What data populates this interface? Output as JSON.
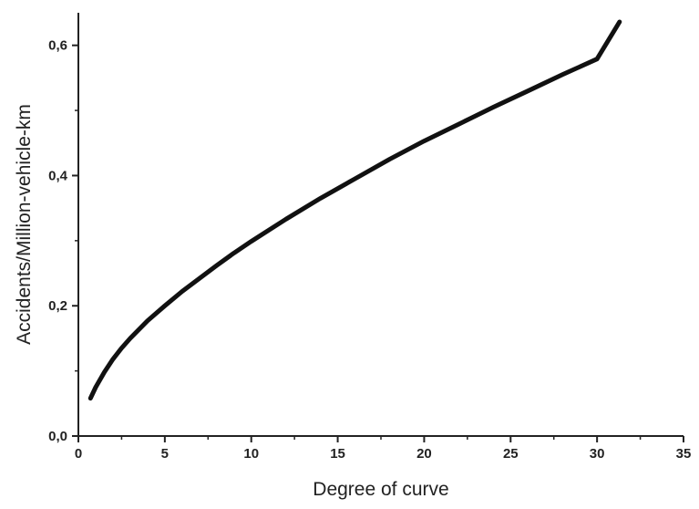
{
  "chart_data": {
    "type": "line",
    "xlabel": "Degree of curve",
    "ylabel": "Accidents/Million-vehicle-km",
    "xlim": [
      0,
      35
    ],
    "ylim": [
      0,
      0.65
    ],
    "xticks": [
      0,
      5,
      10,
      15,
      20,
      25,
      30,
      35
    ],
    "xtick_labels": [
      "0",
      "5",
      "10",
      "15",
      "20",
      "25",
      "30",
      "35"
    ],
    "yticks": [
      0,
      0.2,
      0.4,
      0.6
    ],
    "ytick_labels": [
      "0,0",
      "0,2",
      "0,4",
      "0,6"
    ],
    "grid": false,
    "series": [
      {
        "color": "#111111",
        "x": [
          0.7,
          1,
          1.5,
          2,
          2.5,
          3,
          4,
          5,
          6,
          7,
          8,
          9,
          10,
          12,
          14,
          16,
          18,
          20,
          22,
          24,
          26,
          28,
          30,
          31.3
        ],
        "y": [
          0.058,
          0.075,
          0.098,
          0.118,
          0.135,
          0.15,
          0.177,
          0.2,
          0.222,
          0.242,
          0.262,
          0.281,
          0.299,
          0.333,
          0.365,
          0.395,
          0.425,
          0.453,
          0.479,
          0.505,
          0.53,
          0.555,
          0.579,
          0.636
        ]
      }
    ]
  }
}
